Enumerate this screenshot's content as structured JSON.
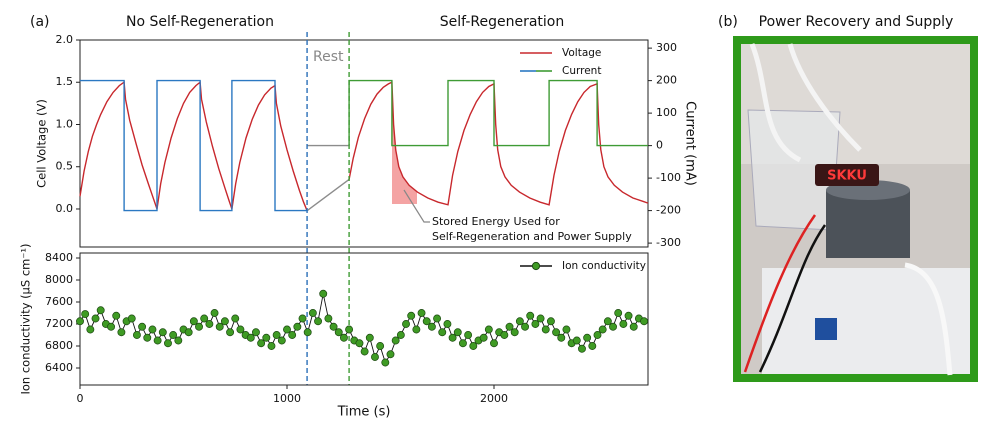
{
  "chart_data": [
    {
      "type": "line",
      "panel_label": "(a)",
      "annotations": [
        "No Self-Regeneration",
        "Self-Regeneration",
        "Rest"
      ],
      "note": [
        "Stored Energy Used for",
        "Self-Regeneration and Power Supply"
      ],
      "ylabel": "Cell Voltage (V)",
      "y2label": "Current (mA)",
      "xlim": [
        0,
        2744
      ],
      "ylim": [
        -0.45,
        2.0
      ],
      "yticks": [
        {
          "value": 0,
          "label": "0.0"
        },
        {
          "value": 0.5,
          "label": "0.5"
        },
        {
          "value": 1,
          "label": "1.0"
        },
        {
          "value": 1.5,
          "label": "1.5"
        },
        {
          "value": 2,
          "label": "2.0"
        }
      ],
      "y2lim": [
        -312,
        325
      ],
      "y2ticks": [
        -300,
        -200,
        -100,
        0,
        100,
        200,
        300
      ],
      "legend": "upper right",
      "vlines": [
        {
          "x": 1097,
          "color": "#2b6fb8"
        },
        {
          "x": 1300,
          "color": "#3f9b35"
        }
      ],
      "series": [
        {
          "name": "Voltage",
          "color": "#c8282d",
          "x": [
            0,
            20,
            40,
            60,
            80,
            100,
            130,
            160,
            190,
            213,
            220,
            240,
            270,
            300,
            330,
            355,
            372,
            390,
            410,
            440,
            470,
            500,
            530,
            560,
            580,
            587,
            610,
            640,
            670,
            700,
            720,
            734,
            752,
            772,
            802,
            832,
            862,
            892,
            922,
            942,
            949,
            970,
            1000,
            1030,
            1060,
            1080,
            1097,
            1200,
            1300,
            1320,
            1345,
            1375,
            1405,
            1435,
            1465,
            1490,
            1507,
            1515,
            1525,
            1540,
            1560,
            1590,
            1630,
            1680,
            1730,
            1778,
            1800,
            1825,
            1855,
            1885,
            1915,
            1945,
            1975,
            2000,
            2008,
            2018,
            2033,
            2053,
            2083,
            2123,
            2173,
            2223,
            2266,
            2290,
            2315,
            2345,
            2375,
            2405,
            2435,
            2465,
            2498,
            2506,
            2516,
            2531,
            2551,
            2581,
            2621,
            2671,
            2721,
            2744
          ],
          "values": [
            0.15,
            0.45,
            0.68,
            0.86,
            1.0,
            1.12,
            1.27,
            1.38,
            1.46,
            1.5,
            1.3,
            1.05,
            0.78,
            0.52,
            0.3,
            0.12,
            0.0,
            0.3,
            0.55,
            0.84,
            1.07,
            1.25,
            1.38,
            1.46,
            1.5,
            1.3,
            1.03,
            0.74,
            0.48,
            0.25,
            0.1,
            0.0,
            0.3,
            0.55,
            0.84,
            1.06,
            1.23,
            1.35,
            1.43,
            1.46,
            1.25,
            0.98,
            0.7,
            0.45,
            0.22,
            0.08,
            -0.02,
            null,
            0.35,
            0.6,
            0.85,
            1.07,
            1.24,
            1.36,
            1.44,
            1.48,
            1.5,
            1.0,
            0.7,
            0.5,
            0.38,
            0.28,
            0.2,
            0.13,
            0.08,
            0.05,
            0.4,
            0.68,
            0.93,
            1.12,
            1.27,
            1.38,
            1.45,
            1.48,
            1.0,
            0.7,
            0.5,
            0.38,
            0.28,
            0.2,
            0.13,
            0.08,
            0.05,
            0.4,
            0.68,
            0.93,
            1.12,
            1.27,
            1.38,
            1.45,
            1.48,
            1.0,
            0.7,
            0.5,
            0.38,
            0.28,
            0.2,
            0.13,
            0.09,
            0.07
          ]
        },
        {
          "color": "#8c8c8c",
          "x": [
            1097,
            1300
          ],
          "values": [
            -0.02,
            0.35
          ]
        },
        {
          "name": "Current",
          "color": "#2b78c2",
          "axis": "y2",
          "x": [
            0,
            213,
            213,
            372,
            372,
            580,
            580,
            734,
            734,
            942,
            942,
            1097
          ],
          "values": [
            200,
            200,
            -200,
            -200,
            200,
            200,
            -200,
            -200,
            200,
            200,
            -200,
            -200
          ]
        },
        {
          "name": "Current",
          "color": "#3f9b35",
          "axis": "y2",
          "x": [
            1300,
            1300,
            1507,
            1507,
            1778,
            1778,
            2000,
            2000,
            2266,
            2266,
            2498,
            2498,
            2744
          ],
          "values": [
            0,
            200,
            200,
            0,
            0,
            200,
            200,
            0,
            0,
            200,
            200,
            0,
            0
          ]
        },
        {
          "color": "#8c8c8c",
          "axis": "y2",
          "x": [
            1097,
            1300
          ],
          "values": [
            0,
            0
          ]
        }
      ]
    },
    {
      "type": "line",
      "ylabel": "Ion conductivity (µS cm⁻¹)",
      "xlabel": "Time (s)",
      "xlim": [
        0,
        2744
      ],
      "xticks": [
        0,
        1000,
        2000
      ],
      "ylim": [
        6091,
        8491
      ],
      "yticks": [
        6400,
        6800,
        7200,
        7600,
        8000,
        8400
      ],
      "legend": "upper right",
      "series": [
        {
          "name": "Ion conductivity",
          "color": "#3f9b24",
          "line_color": "#111111",
          "marker": "circle",
          "x": [
            0,
            25,
            50,
            75,
            100,
            125,
            150,
            175,
            200,
            225,
            250,
            275,
            300,
            325,
            350,
            375,
            400,
            425,
            450,
            475,
            500,
            525,
            550,
            575,
            600,
            625,
            650,
            675,
            700,
            725,
            750,
            775,
            800,
            825,
            850,
            875,
            900,
            925,
            950,
            975,
            1000,
            1025,
            1050,
            1075,
            1100,
            1125,
            1150,
            1175,
            1200,
            1225,
            1250,
            1275,
            1300,
            1325,
            1350,
            1375,
            1400,
            1425,
            1450,
            1475,
            1500,
            1525,
            1550,
            1575,
            1600,
            1625,
            1650,
            1675,
            1700,
            1725,
            1750,
            1775,
            1800,
            1825,
            1850,
            1875,
            1900,
            1925,
            1950,
            1975,
            2000,
            2025,
            2050,
            2075,
            2100,
            2125,
            2150,
            2175,
            2200,
            2225,
            2250,
            2275,
            2300,
            2325,
            2350,
            2375,
            2400,
            2425,
            2450,
            2475,
            2500,
            2525,
            2550,
            2575,
            2600,
            2625,
            2650,
            2675,
            2700,
            2725
          ],
          "values": [
            7250,
            7380,
            7100,
            7300,
            7450,
            7200,
            7150,
            7350,
            7050,
            7250,
            7300,
            7000,
            7150,
            6950,
            7100,
            6900,
            7050,
            6850,
            7000,
            6900,
            7100,
            7050,
            7250,
            7150,
            7300,
            7200,
            7400,
            7150,
            7250,
            7050,
            7300,
            7100,
            7000,
            6950,
            7050,
            6850,
            6950,
            6800,
            7000,
            6900,
            7100,
            7000,
            7150,
            7300,
            7050,
            7400,
            7250,
            7750,
            7300,
            7150,
            7050,
            6950,
            7100,
            6900,
            6850,
            6700,
            6950,
            6600,
            6800,
            6500,
            6650,
            6900,
            7000,
            7200,
            7350,
            7100,
            7400,
            7250,
            7150,
            7300,
            7050,
            7200,
            6950,
            7050,
            6850,
            7000,
            6800,
            6900,
            6950,
            7100,
            6850,
            7050,
            7000,
            7150,
            7050,
            7250,
            7150,
            7350,
            7200,
            7300,
            7100,
            7250,
            7050,
            6950,
            7100,
            6850,
            6900,
            6750,
            6950,
            6800,
            7000,
            7100,
            7250,
            7150,
            7400,
            7200,
            7350,
            7150,
            7300,
            7250
          ]
        }
      ]
    }
  ],
  "photo": {
    "panel_label": "(b)",
    "title": "Power Recovery and Supply",
    "sign_text": "SKKU"
  }
}
